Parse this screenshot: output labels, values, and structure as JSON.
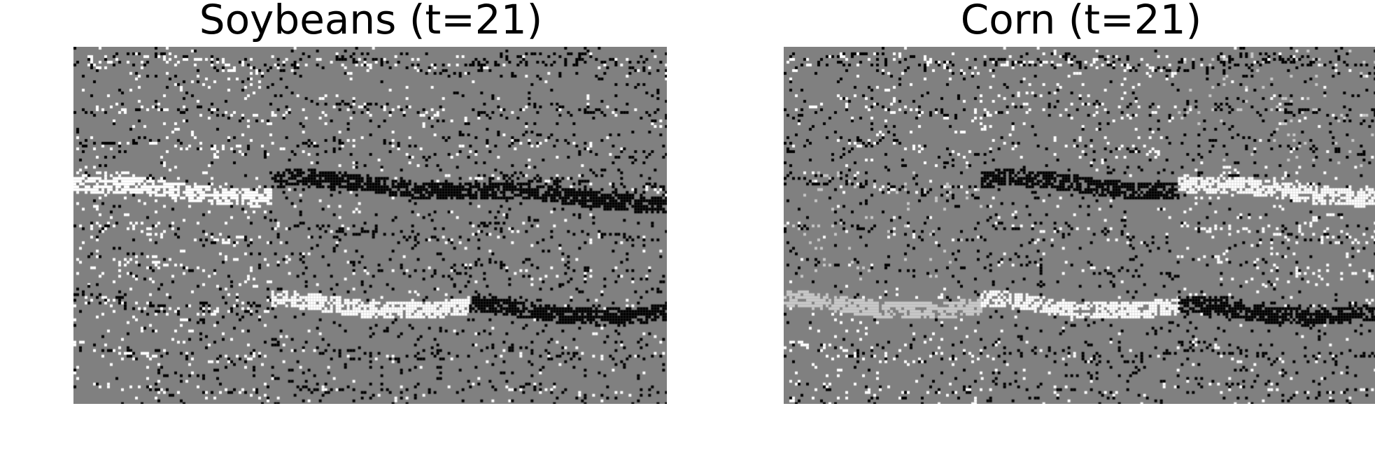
{
  "panels": [
    {
      "title": "Soybeans (t=21)",
      "tiles": [
        [
          "#808080",
          "#808080",
          "#808080"
        ],
        [
          "#808080",
          "#808080",
          "#808080"
        ],
        [
          "#808080",
          "#808080",
          "#808080"
        ]
      ]
    },
    {
      "title": "Corn (t=21)",
      "tiles": [
        [
          "#808080",
          "#808080",
          "#808080"
        ],
        [
          "#808080",
          "#808080",
          "#808080"
        ],
        [
          "#808080",
          "#808080",
          "#808080"
        ]
      ]
    }
  ],
  "colors": {
    "background": "#808080",
    "dark": "#000000",
    "light": "#ffffff",
    "pale": "#c8c8c8"
  }
}
